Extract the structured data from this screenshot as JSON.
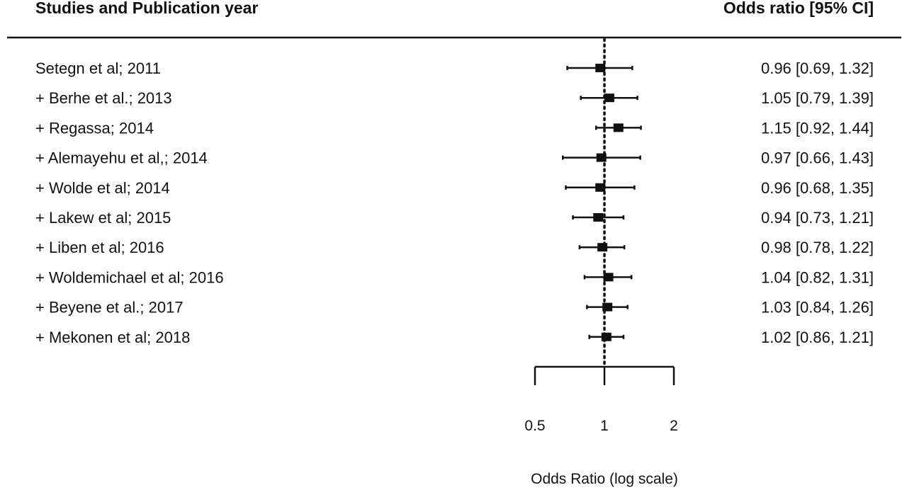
{
  "chart_data": {
    "type": "forest",
    "header_left": "Studies and Publication year",
    "header_right": "Odds ratio [95% CI]",
    "xlabel": "Odds Ratio (log scale)",
    "x_scale": "log",
    "xlim": [
      0.5,
      2
    ],
    "x_ticks": [
      {
        "value": 0.5,
        "label": "0.5"
      },
      {
        "value": 1,
        "label": "1"
      },
      {
        "value": 2,
        "label": "2"
      }
    ],
    "reference_line": 1,
    "studies": [
      {
        "label": "Setegn et al; 2011",
        "or": 0.96,
        "lower": 0.69,
        "upper": 1.32,
        "ci_text": "0.96 [0.69, 1.32]"
      },
      {
        "label": "+ Berhe et al.; 2013",
        "or": 1.05,
        "lower": 0.79,
        "upper": 1.39,
        "ci_text": "1.05 [0.79, 1.39]"
      },
      {
        "label": "+ Regassa; 2014",
        "or": 1.15,
        "lower": 0.92,
        "upper": 1.44,
        "ci_text": "1.15 [0.92, 1.44]"
      },
      {
        "label": "+ Alemayehu et al,; 2014",
        "or": 0.97,
        "lower": 0.66,
        "upper": 1.43,
        "ci_text": "0.97 [0.66, 1.43]"
      },
      {
        "label": "+ Wolde et al; 2014",
        "or": 0.96,
        "lower": 0.68,
        "upper": 1.35,
        "ci_text": "0.96 [0.68, 1.35]"
      },
      {
        "label": "+ Lakew et al; 2015",
        "or": 0.94,
        "lower": 0.73,
        "upper": 1.21,
        "ci_text": "0.94 [0.73, 1.21]"
      },
      {
        "label": "+ Liben et al; 2016",
        "or": 0.98,
        "lower": 0.78,
        "upper": 1.22,
        "ci_text": "0.98 [0.78, 1.22]"
      },
      {
        "label": "+ Woldemichael et al; 2016",
        "or": 1.04,
        "lower": 0.82,
        "upper": 1.31,
        "ci_text": "1.04 [0.82, 1.31]"
      },
      {
        "label": "+ Beyene et al.; 2017",
        "or": 1.03,
        "lower": 0.84,
        "upper": 1.26,
        "ci_text": "1.03 [0.84, 1.26]"
      },
      {
        "label": "+ Mekonen et al; 2018",
        "or": 1.02,
        "lower": 0.86,
        "upper": 1.21,
        "ci_text": "1.02 [0.86, 1.21]"
      }
    ]
  }
}
